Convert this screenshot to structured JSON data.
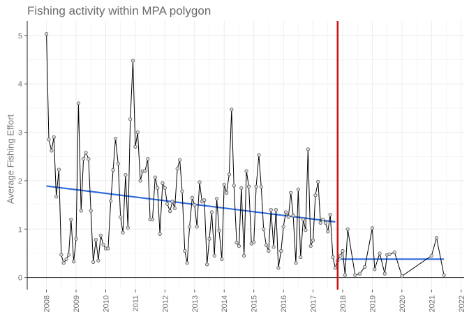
{
  "chart_data": {
    "type": "line",
    "title": "Fishing activity within MPA polygon",
    "xlabel": "",
    "ylabel": "Average Fishing Effort",
    "xlim": [
      2007.35,
      2022.1
    ],
    "ylim": [
      -0.25,
      5.3
    ],
    "x_ticks": [
      2008,
      2009,
      2010,
      2011,
      2012,
      2013,
      2014,
      2015,
      2016,
      2017,
      2018,
      2019,
      2020,
      2021,
      2022
    ],
    "y_ticks": [
      0,
      1,
      2,
      3,
      4,
      5
    ],
    "grid": true,
    "legend": "none",
    "series": [
      {
        "x": [
          2008.0,
          2008.08,
          2008.17,
          2008.25,
          2008.33,
          2008.42,
          2008.5,
          2008.58,
          2008.67,
          2008.75,
          2008.83,
          2008.92,
          2009.0,
          2009.08,
          2009.17,
          2009.25,
          2009.33,
          2009.42,
          2009.5,
          2009.58,
          2009.67,
          2009.75,
          2009.83,
          2009.92,
          2010.0,
          2010.08,
          2010.17,
          2010.25,
          2010.33,
          2010.42,
          2010.5,
          2010.58,
          2010.67,
          2010.75,
          2010.83,
          2010.92,
          2011.0,
          2011.08,
          2011.17,
          2011.25,
          2011.33,
          2011.42,
          2011.5,
          2011.58,
          2011.67,
          2011.75,
          2011.83,
          2011.92,
          2012.0,
          2012.08,
          2012.17,
          2012.25,
          2012.33,
          2012.42,
          2012.5,
          2012.58,
          2012.67,
          2012.75,
          2012.83,
          2012.92,
          2013.0,
          2013.08,
          2013.17,
          2013.25,
          2013.33,
          2013.42,
          2013.5,
          2013.58,
          2013.67,
          2013.75,
          2013.83,
          2013.92,
          2014.0,
          2014.08,
          2014.17,
          2014.25,
          2014.33,
          2014.42,
          2014.5,
          2014.58,
          2014.67,
          2014.75,
          2014.83,
          2014.92,
          2015.0,
          2015.08,
          2015.17,
          2015.25,
          2015.33,
          2015.42,
          2015.5,
          2015.58,
          2015.67,
          2015.75,
          2015.83,
          2015.92,
          2016.0,
          2016.08,
          2016.17,
          2016.25,
          2016.33,
          2016.42,
          2016.5,
          2016.58,
          2016.67,
          2016.75,
          2016.83,
          2016.92,
          2017.0,
          2017.08,
          2017.17,
          2017.25,
          2017.33,
          2017.42,
          2017.5,
          2017.58,
          2017.67,
          2017.75,
          2017.83,
          2017.92,
          2018.0,
          2018.08,
          2018.17,
          2018.42,
          2018.58,
          2018.75,
          2019.0,
          2019.08,
          2019.25,
          2019.42,
          2019.5,
          2019.58,
          2019.75,
          2020.0,
          2021.0,
          2021.17,
          2021.42
        ],
        "values": [
          5.03,
          2.85,
          2.62,
          2.9,
          1.67,
          2.23,
          0.47,
          0.3,
          0.38,
          0.47,
          1.2,
          0.33,
          0.8,
          3.6,
          1.38,
          2.45,
          2.58,
          2.45,
          1.38,
          0.32,
          0.78,
          0.35,
          0.87,
          0.68,
          0.6,
          0.6,
          1.58,
          2.22,
          2.87,
          2.35,
          1.25,
          0.93,
          2.12,
          1.03,
          3.27,
          4.48,
          2.7,
          3.0,
          2.0,
          2.2,
          2.2,
          2.45,
          1.2,
          1.2,
          2.07,
          1.85,
          0.9,
          1.95,
          1.85,
          1.52,
          1.37,
          1.57,
          1.43,
          2.25,
          2.43,
          1.78,
          0.55,
          0.3,
          1.05,
          1.65,
          1.5,
          1.05,
          1.97,
          1.57,
          1.6,
          0.27,
          0.8,
          1.35,
          0.45,
          1.63,
          0.97,
          0.38,
          1.92,
          1.75,
          2.13,
          3.47,
          1.9,
          0.72,
          0.65,
          1.85,
          0.45,
          2.2,
          1.88,
          0.7,
          0.73,
          1.88,
          2.53,
          1.87,
          1.0,
          0.67,
          0.55,
          1.4,
          0.63,
          1.4,
          0.2,
          0.55,
          1.05,
          1.35,
          1.25,
          1.75,
          1.28,
          0.3,
          1.82,
          0.42,
          1.2,
          0.98,
          2.65,
          0.65,
          0.77,
          1.7,
          1.98,
          1.13,
          1.2,
          1.13,
          0.95,
          1.3,
          0.42,
          0.2,
          0.35,
          0.45,
          0.55,
          0.05,
          1.0,
          0.05,
          0.08,
          0.22,
          1.02,
          0.17,
          0.5,
          0.08,
          0.47,
          0.48,
          0.52,
          0.03,
          0.45,
          0.82,
          0.05
        ]
      }
    ],
    "trend_lines": [
      {
        "x": [
          2008.0,
          2017.75
        ],
        "values": [
          1.89,
          1.15
        ]
      },
      {
        "x": [
          2017.92,
          2021.42
        ],
        "values": [
          0.38,
          0.38
        ]
      }
    ],
    "vertical_line_x": 2017.83,
    "colors": {
      "line": "#000000",
      "points": "#555555",
      "trend": "#2e6adf",
      "vline": "#cc1111",
      "grid": "#ececec",
      "axis": "#222222"
    }
  }
}
